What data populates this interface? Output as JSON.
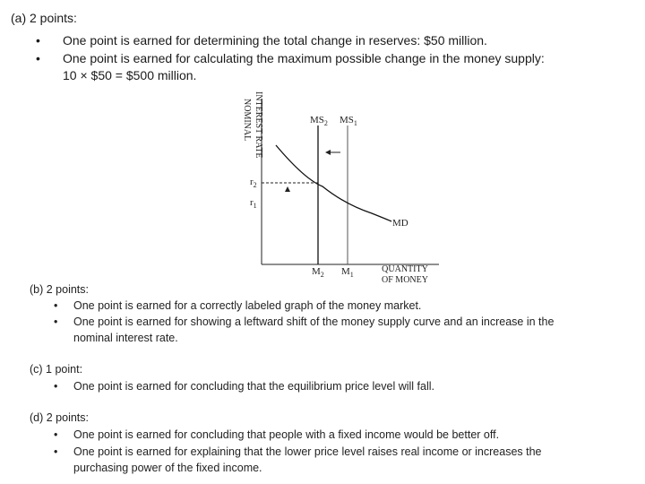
{
  "part_a": {
    "header": "(a)  2 points:",
    "items": [
      "One point is earned for determining the total change in reserves: $50 million.",
      "One point is earned for calculating the maximum possible change in the money supply:",
      "10 × $50 = $500 million."
    ]
  },
  "graph": {
    "y_label_line1": "NOMINAL",
    "y_label_line2": "INTEREST RATE",
    "x_label_line1": "QUANTITY",
    "x_label_line2": "OF MONEY",
    "ms2": "MS",
    "ms2_sub": "2",
    "ms1": "MS",
    "ms1_sub": "1",
    "md": "MD",
    "r2": "r",
    "r2_sub": "2",
    "r1": "r",
    "r1_sub": "1",
    "m2": "M",
    "m2_sub": "2",
    "m1": "M",
    "m1_sub": "1"
  },
  "part_b": {
    "header": "(b)  2 points:",
    "items": [
      "One point is earned for a correctly labeled graph of the money market.",
      "One point is earned for showing a leftward shift of the money supply curve and an increase in the",
      "nominal interest rate."
    ]
  },
  "part_c": {
    "header": "(c)  1 point:",
    "items": [
      "One point is earned for concluding that the equilibrium price level will fall."
    ]
  },
  "part_d": {
    "header": "(d)  2 points:",
    "items": [
      "One point is earned for concluding that people with a fixed income would be better off.",
      "One point is earned for explaining that the lower price level raises real income or increases the",
      "purchasing power of the fixed income."
    ]
  }
}
